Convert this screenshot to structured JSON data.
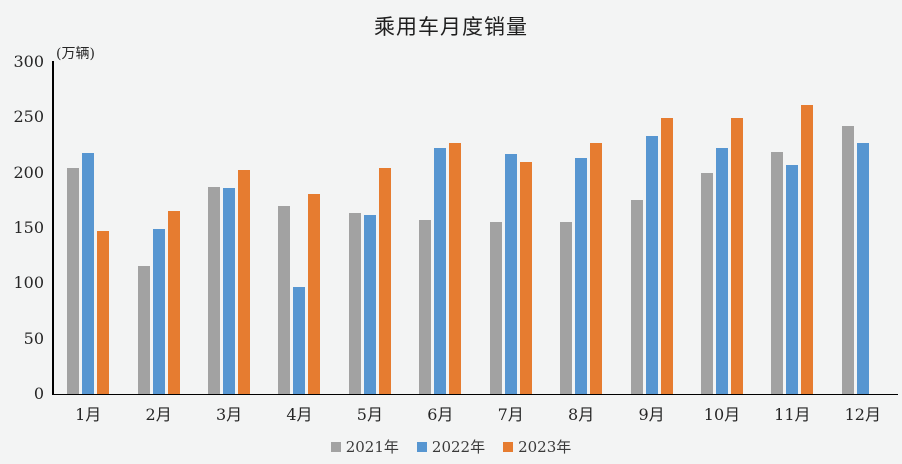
{
  "chart_data": {
    "type": "bar",
    "title": "乘用车月度销量",
    "unit_label": "(万辆)",
    "categories": [
      "1月",
      "2月",
      "3月",
      "4月",
      "5月",
      "6月",
      "7月",
      "8月",
      "9月",
      "10月",
      "11月",
      "12月"
    ],
    "series": [
      {
        "name": "2021年",
        "color": "#A2A2A2",
        "values": [
          204,
          116,
          187,
          170,
          164,
          157,
          155,
          155,
          175,
          200,
          219,
          242
        ]
      },
      {
        "name": "2022年",
        "color": "#5796D1",
        "values": [
          218,
          149,
          186,
          97,
          162,
          222,
          217,
          213,
          233,
          222,
          207,
          227
        ]
      },
      {
        "name": "2023年",
        "color": "#E67C30",
        "values": [
          147,
          165,
          202,
          181,
          204,
          227,
          210,
          227,
          249,
          249,
          261,
          null
        ]
      }
    ],
    "ylim": [
      0,
      300
    ],
    "yticks": [
      0,
      50,
      100,
      150,
      200,
      250,
      300
    ],
    "grid": false,
    "legend_position": "bottom",
    "colors": {
      "background": "#F3F4F4",
      "axis": "#000000",
      "text": "#262626"
    }
  }
}
